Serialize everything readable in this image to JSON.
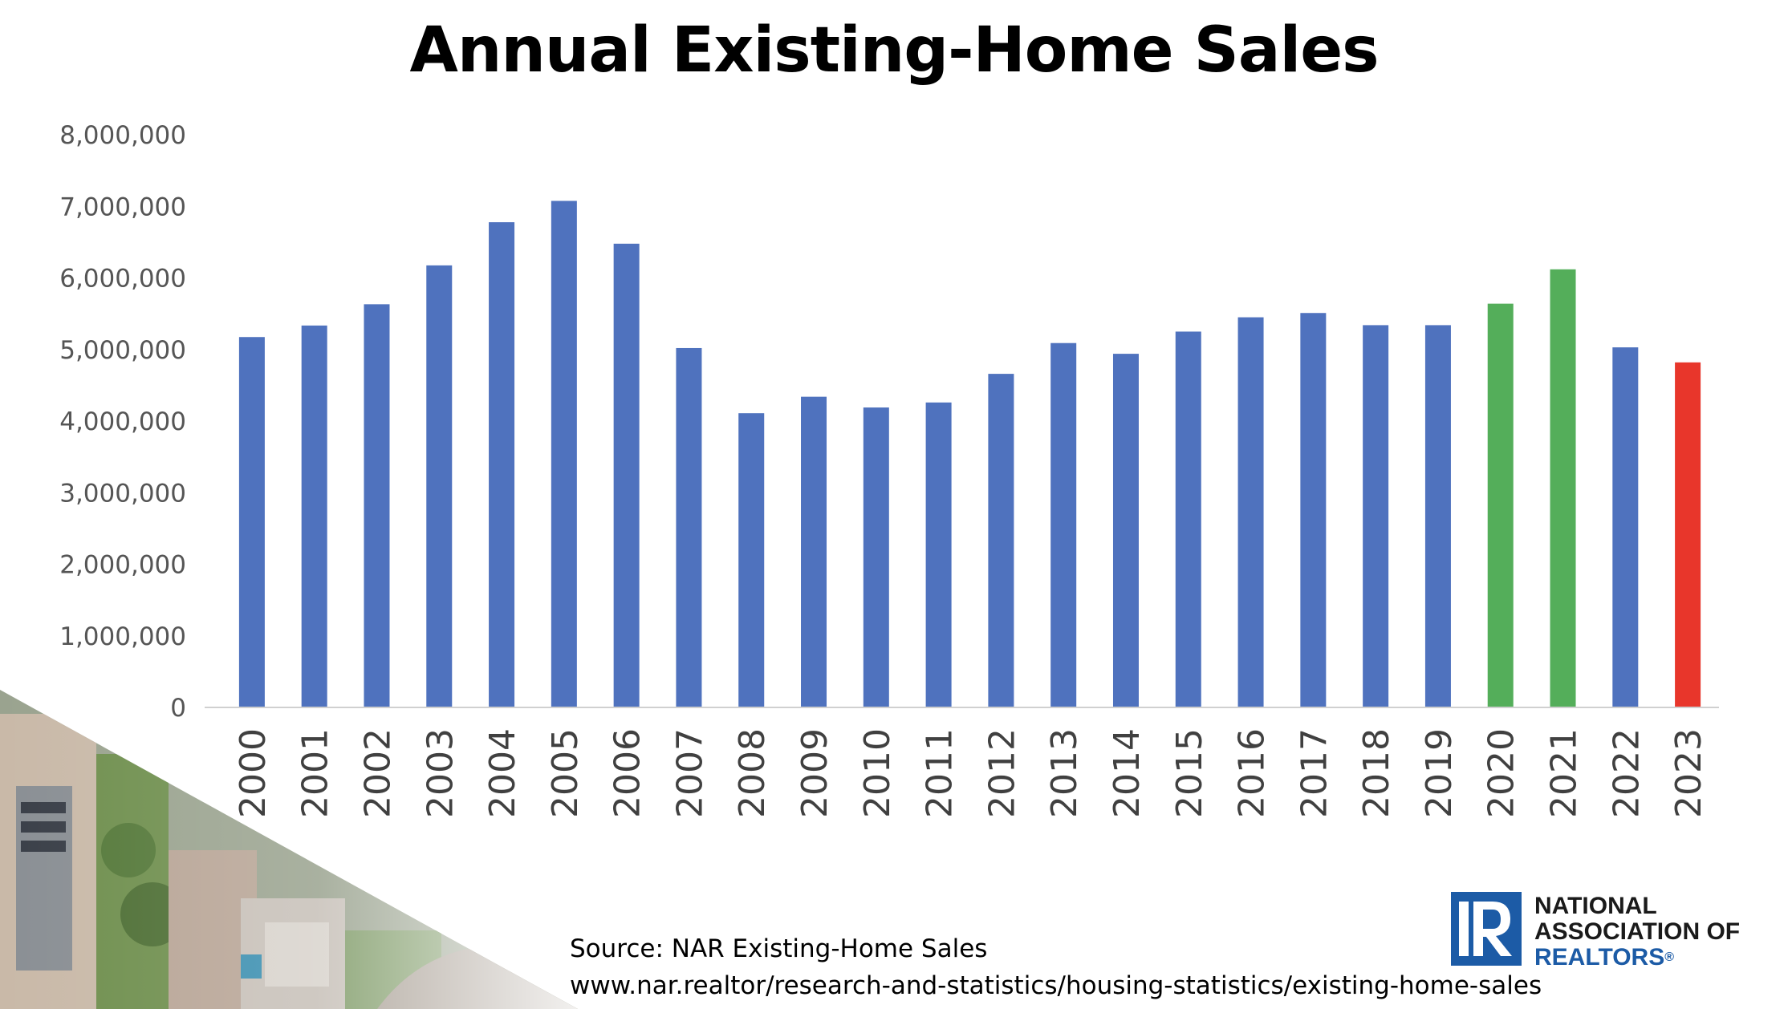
{
  "chart_data": {
    "type": "bar",
    "title": "Annual Existing-Home Sales",
    "categories": [
      "2000",
      "2001",
      "2002",
      "2003",
      "2004",
      "2005",
      "2006",
      "2007",
      "2008",
      "2009",
      "2010",
      "2011",
      "2012",
      "2013",
      "2014",
      "2015",
      "2016",
      "2017",
      "2018",
      "2019",
      "2020",
      "2021",
      "2022",
      "2023"
    ],
    "values": [
      5174000,
      5335000,
      5632000,
      6175000,
      6778000,
      7076000,
      6478000,
      5020000,
      4110000,
      4340000,
      4190000,
      4260000,
      4660000,
      5090000,
      4940000,
      5250000,
      5450000,
      5510000,
      5340000,
      5340000,
      5640000,
      6120000,
      5030000,
      4820000
    ],
    "bar_colors": [
      "#4f72be",
      "#4f72be",
      "#4f72be",
      "#4f72be",
      "#4f72be",
      "#4f72be",
      "#4f72be",
      "#4f72be",
      "#4f72be",
      "#4f72be",
      "#4f72be",
      "#4f72be",
      "#4f72be",
      "#4f72be",
      "#4f72be",
      "#4f72be",
      "#4f72be",
      "#4f72be",
      "#4f72be",
      "#4f72be",
      "#54ae5a",
      "#54ae5a",
      "#4f72be",
      "#e8362b"
    ],
    "ylim": [
      0,
      8000000
    ],
    "yticks": [
      "0",
      "1,000,000",
      "2,000,000",
      "3,000,000",
      "4,000,000",
      "5,000,000",
      "6,000,000",
      "7,000,000",
      "8,000,000"
    ],
    "xlabel": "",
    "ylabel": "",
    "grid": false,
    "legend": "none"
  },
  "source": {
    "line1": "Source: NAR Existing-Home Sales",
    "line2": "www.nar.realtor/research-and-statistics/housing-statistics/existing-home-sales"
  },
  "logo": {
    "line1": "NATIONAL",
    "line2": "ASSOCIATION OF",
    "line3": "REALTORS",
    "mark_letter": "R",
    "color": "#1c5ba6"
  }
}
